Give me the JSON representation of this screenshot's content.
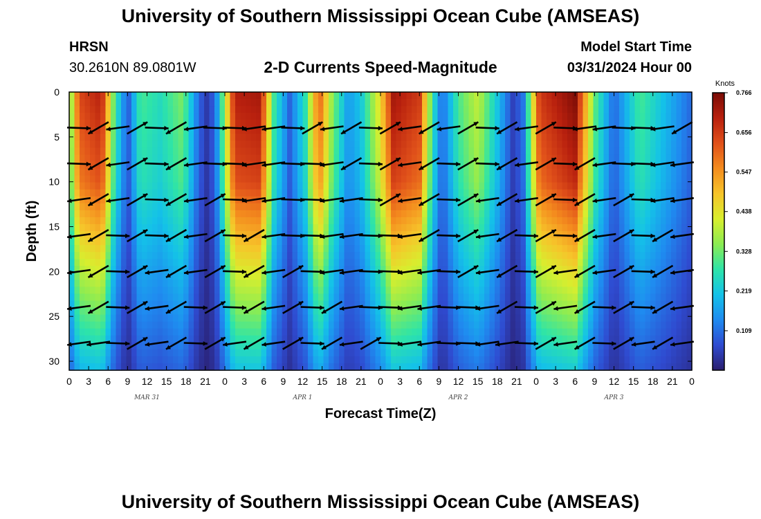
{
  "title_top": "University of Southern Mississippi Ocean Cube (AMSEAS)",
  "title_bottom": "University of Southern Mississippi Ocean Cube (AMSEAS)",
  "station": {
    "name": "HRSN",
    "coords": "30.2610N  89.0801W"
  },
  "model": {
    "label": "Model Start Time",
    "value": "03/31/2024 Hour 00"
  },
  "chart_data": {
    "type": "heatmap",
    "title": "2-D Currents Speed-Magnitude",
    "xlabel": "Forecast Time(Z)",
    "ylabel": "Depth (ft)",
    "x_hours_range": [
      0,
      96
    ],
    "y_depth_range": [
      0,
      31
    ],
    "x_tick_labels": [
      "0",
      "3",
      "6",
      "9",
      "12",
      "15",
      "18",
      "21",
      "0",
      "3",
      "6",
      "9",
      "12",
      "15",
      "18",
      "21",
      "0",
      "3",
      "6",
      "9",
      "12",
      "15",
      "18",
      "21",
      "0",
      "3",
      "6",
      "9",
      "12",
      "15",
      "18",
      "21",
      "0"
    ],
    "y_ticks": [
      0,
      5,
      10,
      15,
      20,
      25,
      30
    ],
    "y_tick_labels": [
      "0",
      "5",
      "10",
      "15",
      "20",
      "25",
      "30"
    ],
    "day_labels": [
      "MAR 31",
      "APR 1",
      "APR 2",
      "APR 3"
    ],
    "colorbar": {
      "unit": "Knots",
      "range": [
        0.0,
        0.766
      ],
      "ticks": [
        0.766,
        0.656,
        0.547,
        0.438,
        0.328,
        0.219,
        0.109
      ],
      "tick_labels": [
        "0.766",
        "0.656",
        "0.547",
        "0.438",
        "0.328",
        "0.219",
        "0.109"
      ],
      "colors": [
        "#2a1e6e",
        "#2f4bd0",
        "#1f8bf0",
        "#14c2e8",
        "#2ee4a8",
        "#8cec52",
        "#d8ee2e",
        "#f6c42a",
        "#f48c1e",
        "#e0501a",
        "#b8200e",
        "#7a0c06"
      ]
    },
    "arrow_depths_ft": [
      4,
      8,
      12,
      16,
      20,
      24,
      28
    ],
    "speed_field": {
      "unit": "knots",
      "time_bands": [
        {
          "hour": 0,
          "speed": 0.3
        },
        {
          "hour": 1.5,
          "speed": 0.64
        },
        {
          "hour": 5,
          "speed": 0.7
        },
        {
          "hour": 7,
          "speed": 0.3
        },
        {
          "hour": 9,
          "speed": 0.08
        },
        {
          "hour": 11,
          "speed": 0.3
        },
        {
          "hour": 14,
          "speed": 0.26
        },
        {
          "hour": 17.5,
          "speed": 0.34
        },
        {
          "hour": 20,
          "speed": 0.1
        },
        {
          "hour": 21.5,
          "speed": 0.03
        },
        {
          "hour": 23,
          "speed": 0.18
        },
        {
          "hour": 25.5,
          "speed": 0.7
        },
        {
          "hour": 29.5,
          "speed": 0.72
        },
        {
          "hour": 31.5,
          "speed": 0.3
        },
        {
          "hour": 34,
          "speed": 0.1
        },
        {
          "hour": 36.5,
          "speed": 0.28
        },
        {
          "hour": 38.5,
          "speed": 0.62
        },
        {
          "hour": 40.5,
          "speed": 0.36
        },
        {
          "hour": 43,
          "speed": 0.16
        },
        {
          "hour": 45,
          "speed": 0.22
        },
        {
          "hour": 48,
          "speed": 0.46
        },
        {
          "hour": 50,
          "speed": 0.72
        },
        {
          "hour": 54,
          "speed": 0.66
        },
        {
          "hour": 56,
          "speed": 0.28
        },
        {
          "hour": 57.5,
          "speed": 0.1
        },
        {
          "hour": 60,
          "speed": 0.3
        },
        {
          "hour": 63,
          "speed": 0.4
        },
        {
          "hour": 66,
          "speed": 0.22
        },
        {
          "hour": 68.5,
          "speed": 0.05
        },
        {
          "hour": 70,
          "speed": 0.12
        },
        {
          "hour": 72.5,
          "speed": 0.66
        },
        {
          "hour": 78,
          "speed": 0.76
        },
        {
          "hour": 81,
          "speed": 0.32
        },
        {
          "hour": 84,
          "speed": 0.1
        },
        {
          "hour": 88,
          "speed": 0.3
        },
        {
          "hour": 92,
          "speed": 0.2
        },
        {
          "hour": 96,
          "speed": 0.1
        }
      ],
      "depth_factors": [
        {
          "depth": 0,
          "factor": 1.0
        },
        {
          "depth": 10,
          "factor": 0.9
        },
        {
          "depth": 20,
          "factor": 0.6
        },
        {
          "depth": 31,
          "factor": 0.3
        }
      ]
    }
  }
}
